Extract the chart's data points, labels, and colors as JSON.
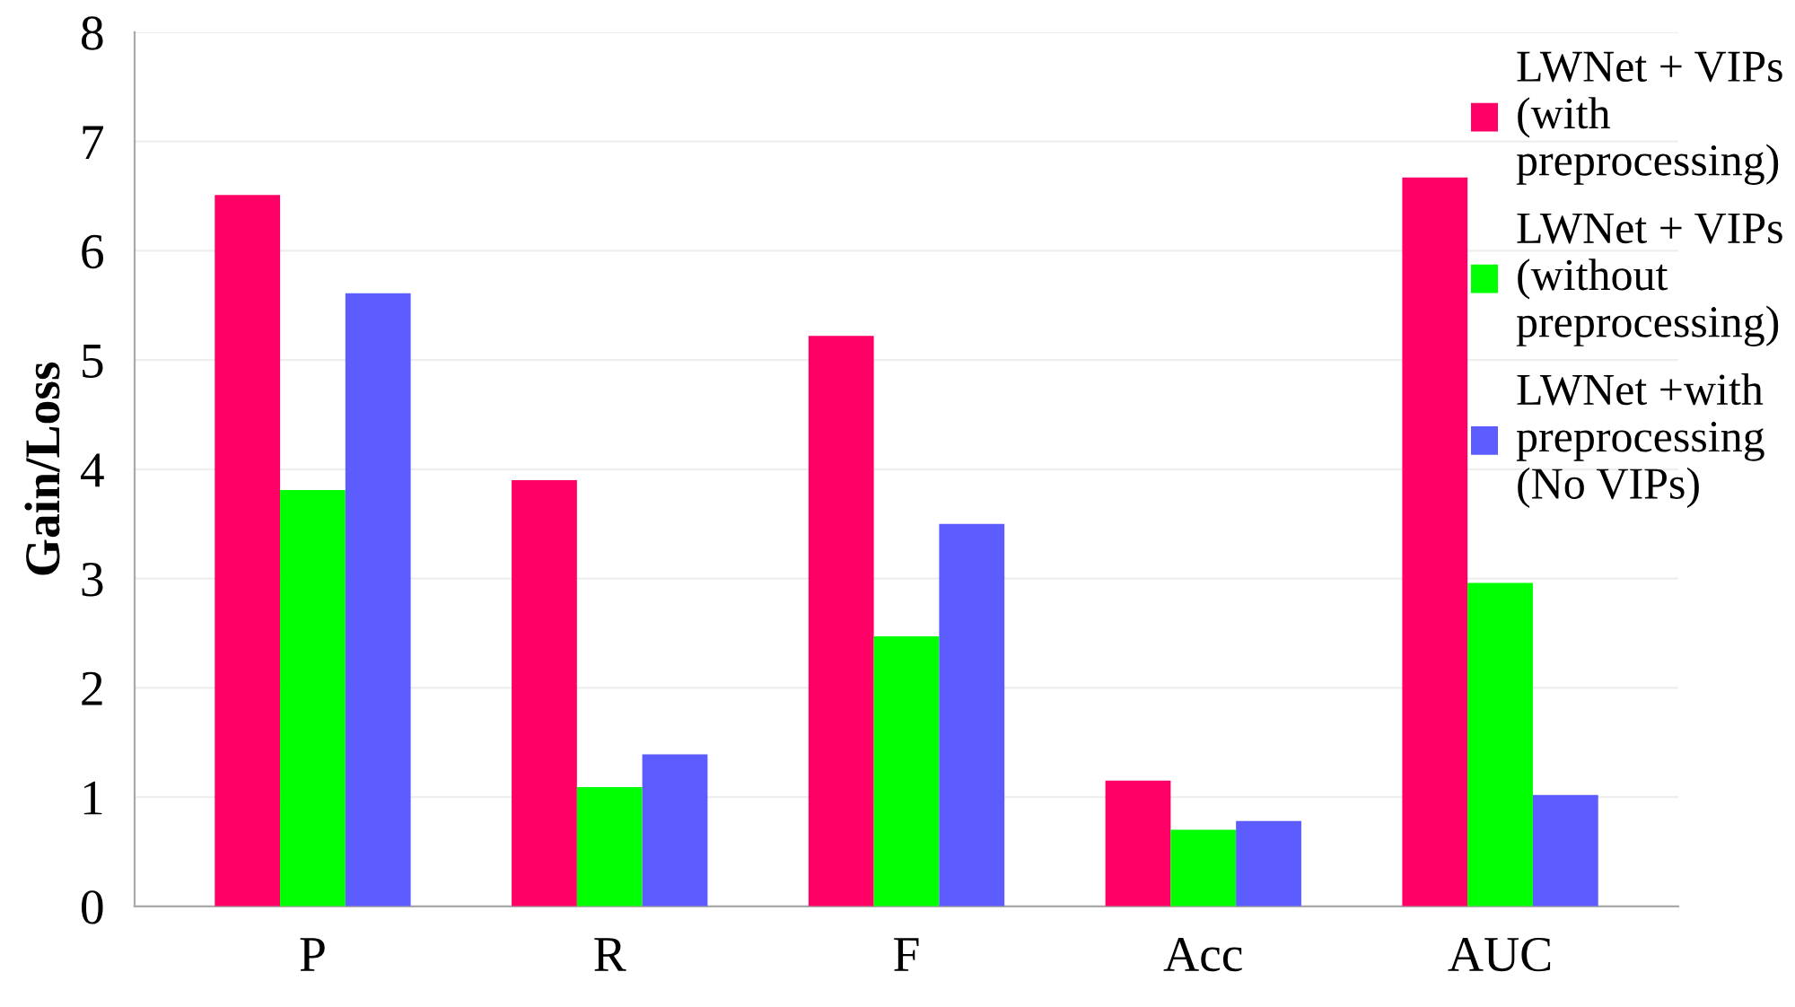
{
  "chart_data": {
    "type": "bar",
    "ylabel": "Gain/Loss",
    "categories": [
      "P",
      "R",
      "F",
      "Acc",
      "AUC"
    ],
    "series": [
      {
        "name": "LWNet + VIPs\n(with\npreprocessing)",
        "color": "#ff0066",
        "values": [
          6.51,
          3.9,
          5.22,
          1.15,
          6.67
        ]
      },
      {
        "name": "LWNet + VIPs\n(without\npreprocessing)",
        "color": "#00ff00",
        "values": [
          3.81,
          1.09,
          2.47,
          0.7,
          2.96
        ]
      },
      {
        "name": "LWNet +with\npreprocessing\n(No VIPs)",
        "color": "#5c5cff",
        "values": [
          5.61,
          1.39,
          3.5,
          0.78,
          1.02
        ]
      }
    ],
    "ylim": [
      0,
      8
    ],
    "yticks": [
      0,
      1,
      2,
      3,
      4,
      5,
      6,
      7,
      8
    ],
    "grid": "y",
    "legend": "top right"
  }
}
